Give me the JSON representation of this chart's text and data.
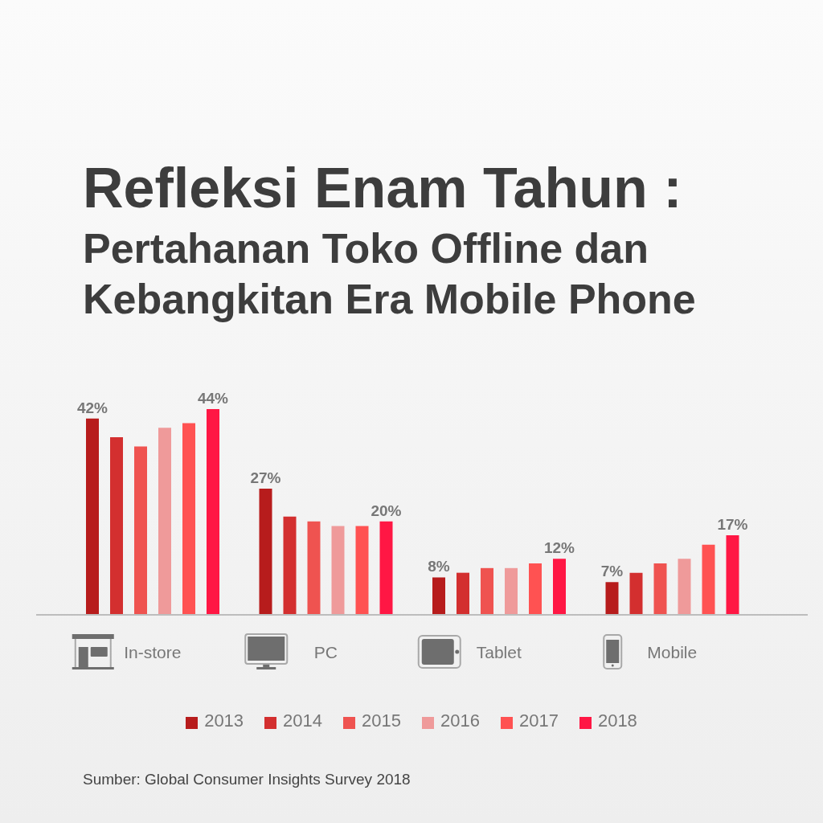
{
  "chart_data": {
    "type": "bar",
    "title": "Refleksi Enam Tahun :",
    "subtitle": "Pertahanan Toko Offline dan Kebangkitan Era Mobile Phone",
    "categories": [
      "In-store",
      "PC",
      "Tablet",
      "Mobile"
    ],
    "series": [
      {
        "name": "2013",
        "color": "#b71c1c",
        "values": [
          42,
          27,
          8,
          7
        ],
        "value_labels": [
          "42%",
          "27%",
          "8%",
          "7%"
        ]
      },
      {
        "name": "2014",
        "color": "#d32f2f",
        "values": [
          38,
          21,
          9,
          9
        ]
      },
      {
        "name": "2015",
        "color": "#ef5350",
        "values": [
          36,
          20,
          10,
          11
        ]
      },
      {
        "name": "2016",
        "color": "#ef9a9a",
        "values": [
          40,
          19,
          10,
          12
        ]
      },
      {
        "name": "2017",
        "color": "#ff5252",
        "values": [
          41,
          19,
          11,
          15
        ]
      },
      {
        "name": "2018",
        "color": "#ff1744",
        "values": [
          44,
          20,
          12,
          17
        ],
        "value_labels": [
          "44%",
          "20%",
          "12%",
          "17%"
        ]
      }
    ],
    "legend": "bottom",
    "tick_labels": "x",
    "annotations": [
      "Sumber: Global Consumer Insights Survey 2018"
    ]
  }
}
